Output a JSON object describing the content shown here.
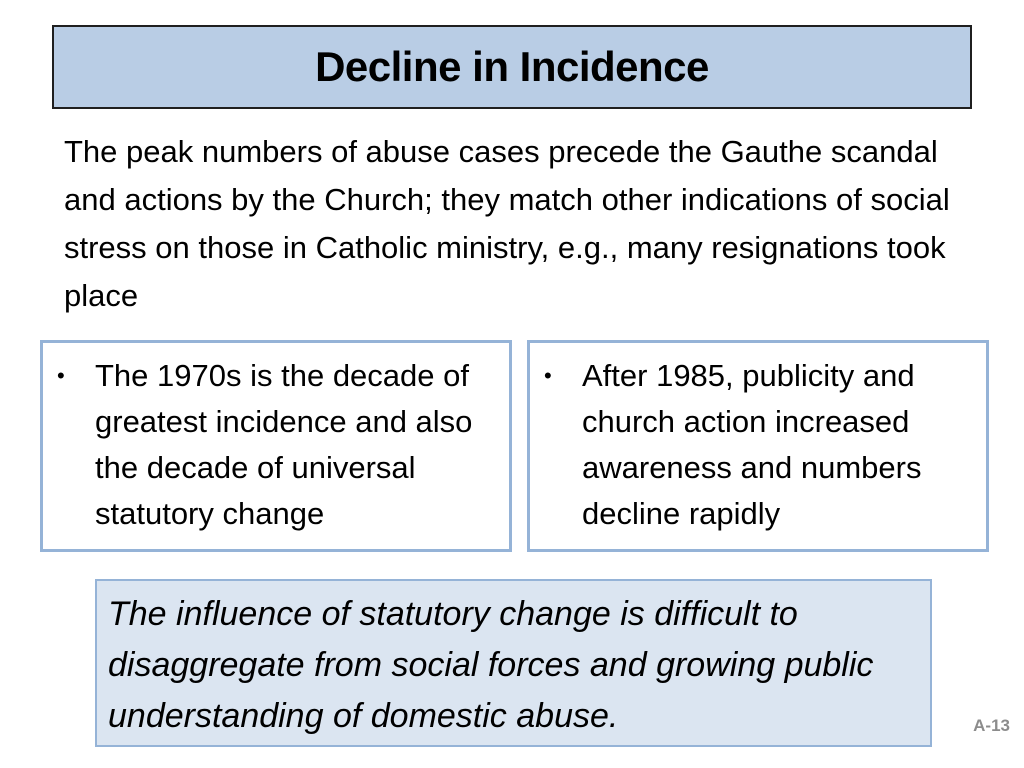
{
  "slide": {
    "title": "Decline in Incidence",
    "intro": "The peak numbers of abuse cases precede the Gauthe scandal and actions by the Church; they match other indications of social stress on those in Catholic ministry, e.g., many resignations took place",
    "bullet_left": {
      "marker": "•",
      "text": "The 1970s is the decade of greatest incidence and also the decade of universal statutory change"
    },
    "bullet_right": {
      "marker": "•",
      "text": "After 1985, publicity and church action increased awareness and numbers decline rapidly"
    },
    "conclusion": "The influence of statutory change is difficult to disaggregate from social forces and growing public understanding of domestic abuse.",
    "slide_number": "A-13"
  },
  "colors": {
    "title_fill": "#b9cde5",
    "box_border": "#95b3d7",
    "conclusion_fill": "#dbe5f1",
    "slide_number": "#8c8c8c"
  }
}
